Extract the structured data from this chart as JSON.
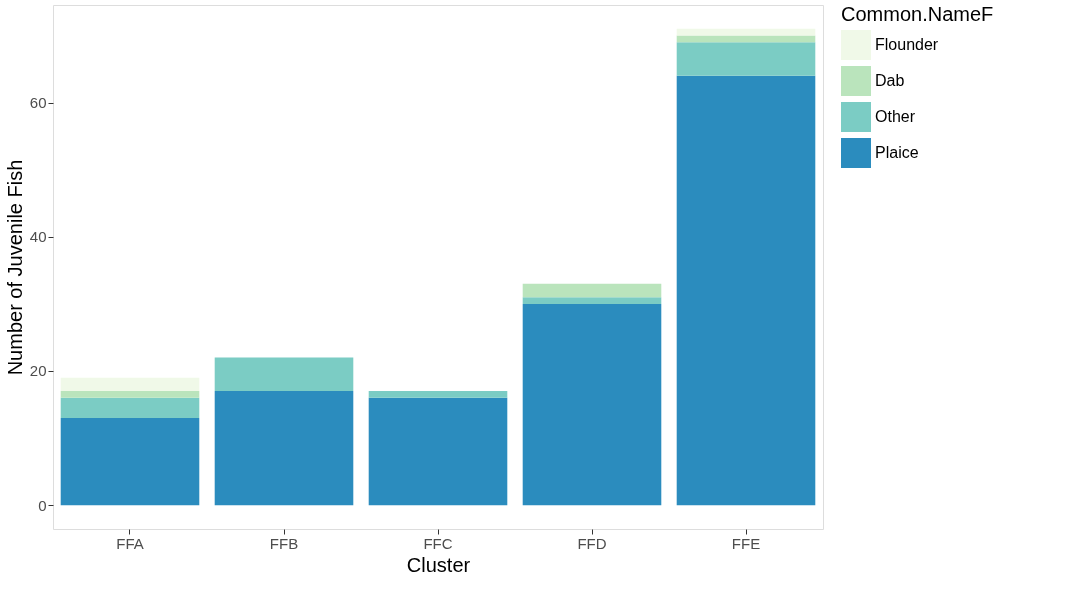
{
  "chart_data": {
    "type": "bar",
    "stacked": true,
    "xlabel": "Cluster",
    "ylabel": "Number of Juvenile Fish",
    "legend_title": "Common.NameF",
    "legend": "right",
    "grid": false,
    "categories": [
      "FFA",
      "FFB",
      "FFC",
      "FFD",
      "FFE"
    ],
    "series": [
      {
        "name": "Plaice",
        "color": "#2b8cbe",
        "values": [
          13,
          17,
          16,
          30,
          64
        ]
      },
      {
        "name": "Other",
        "color": "#7bccc4",
        "values": [
          3,
          5,
          1,
          1,
          5
        ]
      },
      {
        "name": "Dab",
        "color": "#bae4bc",
        "values": [
          1,
          0,
          0,
          2,
          1
        ]
      },
      {
        "name": "Flounder",
        "color": "#f0f9e8",
        "values": [
          2,
          0,
          0,
          0,
          1
        ]
      }
    ],
    "ylim": [
      -3.55,
      74.55
    ],
    "yticks": [
      0,
      20,
      40,
      60
    ]
  }
}
